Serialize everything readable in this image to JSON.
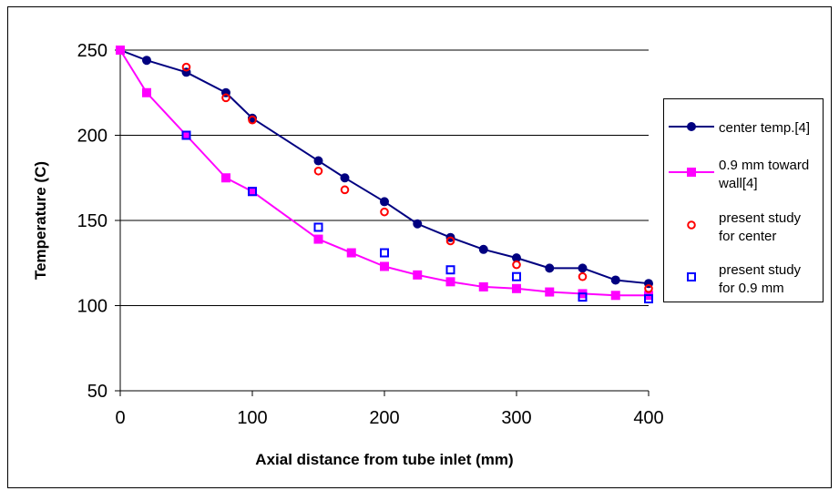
{
  "chart_data": {
    "type": "line",
    "title": "",
    "xlabel": "Axial distance from tube inlet (mm)",
    "ylabel": "Temperature (C)",
    "xlim": [
      0,
      400
    ],
    "ylim": [
      50,
      250
    ],
    "xticks": [
      0,
      100,
      200,
      300,
      400
    ],
    "yticks": [
      50,
      100,
      150,
      200,
      250
    ],
    "grid": "horizontal",
    "legend_position": "right",
    "series": [
      {
        "name": "center temp.[4]",
        "style": "line-marker-circle",
        "color": "#000080",
        "x": [
          0,
          20,
          50,
          80,
          100,
          150,
          170,
          200,
          225,
          250,
          275,
          300,
          325,
          350,
          375,
          400
        ],
        "y": [
          250,
          244,
          237,
          225,
          210,
          185,
          175,
          161,
          148,
          140,
          133,
          128,
          122,
          122,
          115,
          113
        ]
      },
      {
        "name": "0.9 mm toward wall[4]",
        "name_lines": [
          "0.9 mm toward",
          "wall[4]"
        ],
        "style": "line-marker-square",
        "color": "#ff00ff",
        "x": [
          0,
          20,
          50,
          80,
          100,
          150,
          175,
          200,
          225,
          250,
          275,
          300,
          325,
          350,
          375,
          400
        ],
        "y": [
          250,
          225,
          200,
          175,
          167,
          139,
          131,
          123,
          118,
          114,
          111,
          110,
          108,
          107,
          106,
          106
        ]
      },
      {
        "name": "present study for center",
        "name_lines": [
          "present study",
          "for center"
        ],
        "style": "marker-open-circle",
        "color": "#ff0000",
        "x": [
          50,
          80,
          100,
          150,
          170,
          200,
          250,
          300,
          350,
          400
        ],
        "y": [
          240,
          222,
          209,
          179,
          168,
          155,
          138,
          124,
          117,
          110
        ]
      },
      {
        "name": "present study for 0.9 mm",
        "name_lines": [
          "present study",
          "for 0.9 mm"
        ],
        "style": "marker-open-square",
        "color": "#0000ff",
        "x": [
          50,
          100,
          150,
          200,
          250,
          300,
          350,
          400
        ],
        "y": [
          200,
          167,
          146,
          131,
          121,
          117,
          105,
          104
        ]
      }
    ]
  }
}
